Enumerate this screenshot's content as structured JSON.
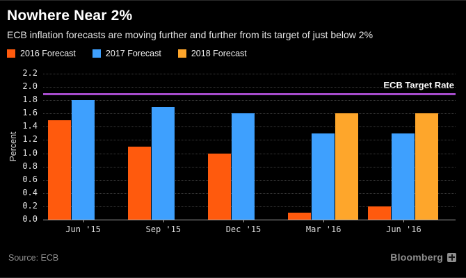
{
  "header": {
    "title": "Nowhere Near 2%",
    "subtitle": "ECB inflation forecasts are moving further and further from its target of just below 2%"
  },
  "legend": [
    {
      "label": "2016 Forecast",
      "color": "#ff5a0d"
    },
    {
      "label": "2017 Forecast",
      "color": "#3ea0fe"
    },
    {
      "label": "2018 Forecast",
      "color": "#fea62b"
    }
  ],
  "chart_data": {
    "type": "bar",
    "title": "Nowhere Near 2%",
    "categories": [
      "Jun '15",
      "Sep '15",
      "Dec '15",
      "Mar '16",
      "Jun '16"
    ],
    "series": [
      {
        "name": "2016 Forecast",
        "color": "#ff5a0d",
        "values": [
          1.5,
          1.1,
          1.0,
          0.1,
          0.2
        ]
      },
      {
        "name": "2017 Forecast",
        "color": "#3ea0fe",
        "values": [
          1.8,
          1.7,
          1.6,
          1.3,
          1.3
        ]
      },
      {
        "name": "2018 Forecast",
        "color": "#fea62b",
        "values": [
          null,
          null,
          null,
          1.6,
          1.6
        ]
      }
    ],
    "xlabel": "",
    "ylabel": "Percent",
    "ylim": [
      0,
      2.2
    ],
    "ytick_step": 0.2,
    "grid": "dotted-horizontal",
    "legend_position": "top-left",
    "reference_line": {
      "value": 1.9,
      "label": "ECB Target Rate",
      "color": "#a64ccc"
    }
  },
  "footer": {
    "source": "Source: ECB",
    "brand": "Bloomberg"
  }
}
